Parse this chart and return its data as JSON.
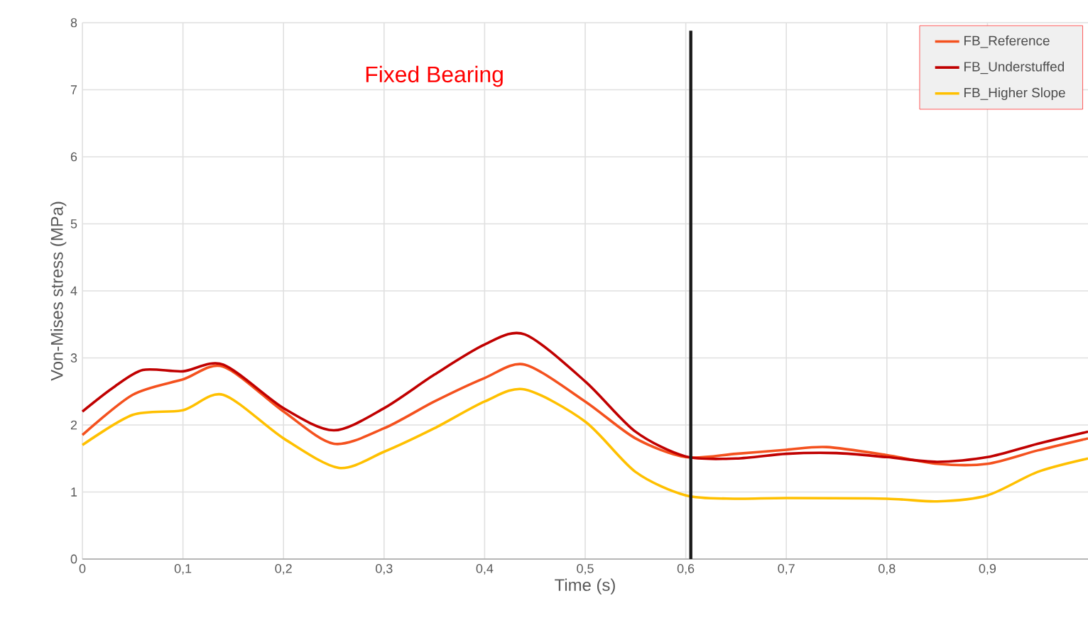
{
  "chart_data": {
    "type": "line",
    "xlabel": "Time (s)",
    "ylabel": "Von-Mises stress (MPa)",
    "annotations": [
      "Fixed Bearing"
    ],
    "xlim": [
      0,
      1
    ],
    "ylim": [
      0,
      8
    ],
    "xticks": [
      0,
      {
        "value": 0.1,
        "label": "0,1"
      },
      {
        "value": 0.2,
        "label": "0,2"
      },
      {
        "value": 0.3,
        "label": "0,3"
      },
      {
        "value": 0.4,
        "label": "0,4"
      },
      {
        "value": 0.5,
        "label": "0,5"
      },
      {
        "value": 0.6,
        "label": "0,6"
      },
      {
        "value": 0.7,
        "label": "0,7"
      },
      {
        "value": 0.8,
        "label": "0,8"
      },
      {
        "value": 0.9,
        "label": "0,9"
      }
    ],
    "yticks": [
      0,
      1,
      2,
      3,
      4,
      5,
      6,
      7,
      8
    ],
    "grid": true,
    "legend": "top right",
    "marker": "none",
    "line_style": "solid",
    "ref_lines": [
      {
        "axis": "x",
        "value": 0.605,
        "color": "#1a1a1a"
      }
    ],
    "series": [
      {
        "name": "FB_Reference",
        "color": "#f4511e",
        "x": [
          0,
          0.05,
          0.1,
          0.14,
          0.2,
          0.25,
          0.3,
          0.35,
          0.4,
          0.44,
          0.5,
          0.55,
          0.6,
          0.65,
          0.7,
          0.74,
          0.8,
          0.85,
          0.9,
          0.95,
          1.0
        ],
        "values": [
          1.85,
          2.45,
          2.68,
          2.87,
          2.2,
          1.72,
          1.95,
          2.35,
          2.7,
          2.9,
          2.35,
          1.8,
          1.52,
          1.57,
          1.63,
          1.67,
          1.55,
          1.42,
          1.42,
          1.62,
          1.8
        ]
      },
      {
        "name": "FB_Understuffed",
        "color": "#c00000",
        "x": [
          0,
          0.03,
          0.06,
          0.1,
          0.14,
          0.2,
          0.25,
          0.3,
          0.35,
          0.4,
          0.44,
          0.5,
          0.55,
          0.6,
          0.65,
          0.7,
          0.75,
          0.8,
          0.85,
          0.9,
          0.95,
          1.0
        ],
        "values": [
          2.2,
          2.55,
          2.82,
          2.8,
          2.9,
          2.25,
          1.92,
          2.25,
          2.75,
          3.2,
          3.35,
          2.65,
          1.9,
          1.53,
          1.5,
          1.57,
          1.58,
          1.52,
          1.45,
          1.52,
          1.72,
          1.9
        ]
      },
      {
        "name": "FB_Higher Slope",
        "color": "#ffc000",
        "x": [
          0,
          0.05,
          0.1,
          0.14,
          0.2,
          0.255,
          0.3,
          0.35,
          0.4,
          0.44,
          0.5,
          0.55,
          0.6,
          0.65,
          0.7,
          0.8,
          0.85,
          0.9,
          0.95,
          1.0
        ],
        "values": [
          1.7,
          2.15,
          2.22,
          2.45,
          1.8,
          1.36,
          1.6,
          1.95,
          2.35,
          2.53,
          2.05,
          1.3,
          0.95,
          0.9,
          0.91,
          0.9,
          0.86,
          0.95,
          1.3,
          1.5
        ]
      }
    ]
  }
}
